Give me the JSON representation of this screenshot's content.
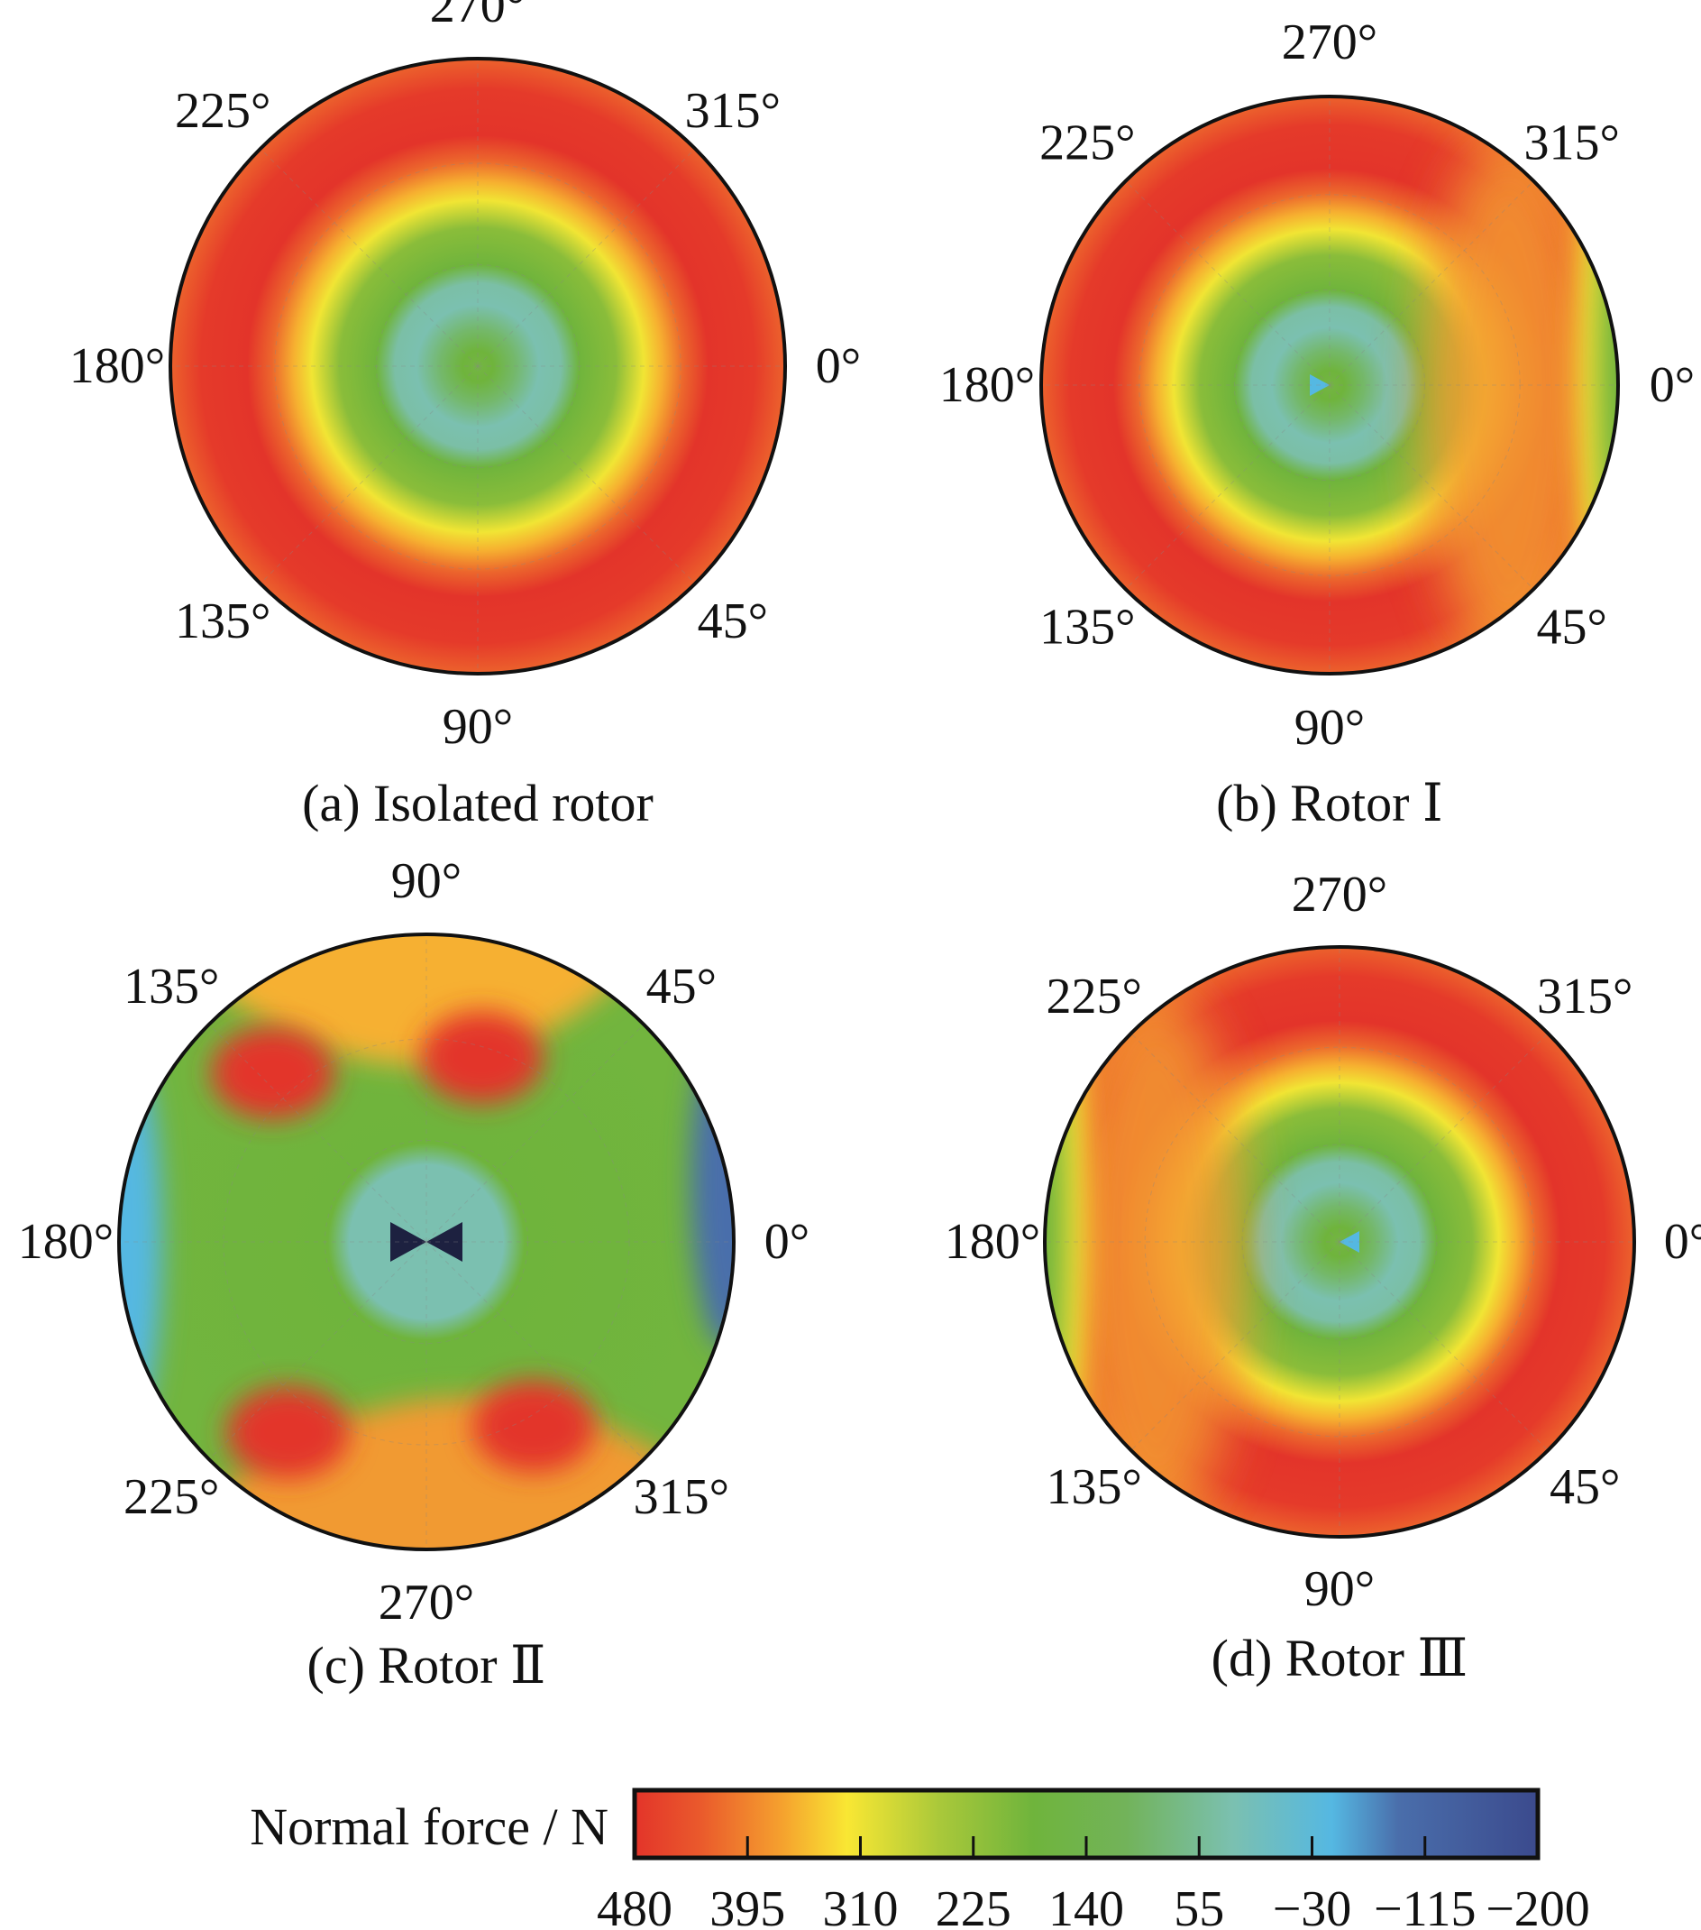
{
  "chart_data": {
    "type": "heatmap",
    "subtype": "polar-contour",
    "colorbar": {
      "label": "Normal force / N",
      "range": [
        480,
        -200
      ],
      "tick_labels": [
        "480",
        "395",
        "310",
        "225",
        "140",
        "55",
        "−30",
        "−115",
        "−200"
      ],
      "tick_values": [
        480,
        395,
        310,
        225,
        140,
        55,
        -30,
        -115,
        -200
      ],
      "colors": [
        {
          "value": 480,
          "color": "#e3342a"
        },
        {
          "value": 430,
          "color": "#ea5a2c"
        },
        {
          "value": 370,
          "color": "#f5a02e"
        },
        {
          "value": 320,
          "color": "#f9e733"
        },
        {
          "value": 250,
          "color": "#a9c83a"
        },
        {
          "value": 180,
          "color": "#6fb43c"
        },
        {
          "value": 110,
          "color": "#72b35a"
        },
        {
          "value": 30,
          "color": "#7bc0b0"
        },
        {
          "value": -45,
          "color": "#55b8e2"
        },
        {
          "value": -95,
          "color": "#4a6eab"
        },
        {
          "value": -200,
          "color": "#3b4a8d"
        }
      ]
    },
    "panels": [
      {
        "id": "a",
        "title": "(a) Isolated rotor",
        "direction": "clockwise",
        "angle_labels": [
          "0°",
          "45°",
          "90°",
          "135°",
          "180°",
          "225°",
          "270°",
          "315°"
        ],
        "angles": [
          0,
          45,
          90,
          135,
          180,
          225,
          270,
          315
        ],
        "description_values": {
          "center": 150,
          "inner_ring": 40,
          "mid": 180,
          "outer": 470
        }
      },
      {
        "id": "b",
        "title": "(b) Rotor Ⅰ",
        "direction": "clockwise",
        "angle_labels": [
          "0°",
          "45°",
          "90°",
          "135°",
          "180°",
          "225°",
          "270°",
          "315°"
        ],
        "angles": [
          0,
          45,
          90,
          135,
          180,
          225,
          270,
          315
        ],
        "description_values": {
          "center": 150,
          "outer": 470,
          "right_edge": 160
        }
      },
      {
        "id": "c",
        "title": "(c) Rotor Ⅱ",
        "direction": "counterclockwise",
        "angle_labels": [
          "0°",
          "45°",
          "90°",
          "135°",
          "180°",
          "225°",
          "270°",
          "315°"
        ],
        "angles": [
          0,
          45,
          90,
          135,
          180,
          225,
          270,
          315
        ],
        "description_values": {
          "center": -200,
          "background": 170,
          "lobes": 470,
          "side_edges": -120
        }
      },
      {
        "id": "d",
        "title": "(d) Rotor Ⅲ",
        "direction": "clockwise",
        "angle_labels": [
          "0°",
          "45°",
          "90°",
          "135°",
          "180°",
          "225°",
          "270°",
          "315°"
        ],
        "angles": [
          0,
          45,
          90,
          135,
          180,
          225,
          270,
          315
        ],
        "description_values": {
          "center": 150,
          "outer": 470,
          "left_edge": 160
        }
      }
    ]
  }
}
